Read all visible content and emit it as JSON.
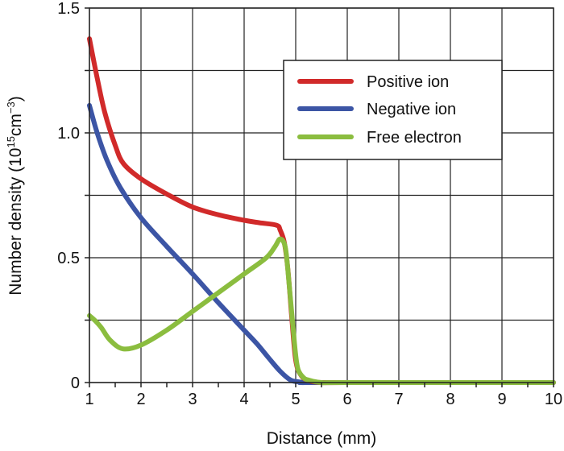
{
  "chart_data": {
    "type": "line",
    "title": "",
    "xlabel": "Distance (mm)",
    "ylabel": {
      "main": "Number density (10",
      "exp1": "15",
      "mid": "cm",
      "exp2": "−3",
      "end": ")"
    },
    "xlim": [
      1,
      10
    ],
    "ylim": [
      0,
      1.5
    ],
    "xticks": [
      1,
      2,
      3,
      4,
      5,
      6,
      7,
      8,
      9,
      10
    ],
    "xtick_labels": [
      "1",
      "2",
      "3",
      "4",
      "5",
      "6",
      "7",
      "8",
      "9",
      "10"
    ],
    "yticks": [
      0,
      0.5,
      1.0,
      1.5
    ],
    "ytick_labels": [
      "0",
      "0.5",
      "1.0",
      "1.5"
    ],
    "grid": true,
    "legend_position": "top-right",
    "series": [
      {
        "name": "Positive ion",
        "color": "#d12a2a",
        "x": [
          1,
          1.15,
          1.3,
          1.5,
          1.66,
          2,
          2.5,
          3,
          3.5,
          4,
          4.3,
          4.63,
          4.7,
          4.78,
          4.85,
          4.92,
          5.0,
          5.1,
          5.25,
          5.5,
          6,
          10
        ],
        "y": [
          1.377,
          1.22,
          1.08,
          0.95,
          0.877,
          0.816,
          0.755,
          0.703,
          0.672,
          0.65,
          0.64,
          0.63,
          0.61,
          0.56,
          0.45,
          0.27,
          0.09,
          0.03,
          0.008,
          0,
          0,
          0
        ]
      },
      {
        "name": "Negative ion",
        "color": "#3c55a5",
        "x": [
          1,
          1.15,
          1.34,
          1.6,
          2,
          2.5,
          3,
          3.5,
          4,
          4.25,
          4.47,
          4.7,
          4.9,
          5.05,
          5.2,
          5.5,
          10
        ],
        "y": [
          1.11,
          1.0,
          0.89,
          0.78,
          0.66,
          0.545,
          0.435,
          0.32,
          0.21,
          0.155,
          0.1,
          0.045,
          0.01,
          0.003,
          0,
          0,
          0
        ]
      },
      {
        "name": "Free electron",
        "color": "#8bbd3f",
        "x": [
          1,
          1.1,
          1.23,
          1.4,
          1.65,
          2,
          2.5,
          3,
          3.5,
          4,
          4.43,
          4.6,
          4.7,
          4.8,
          4.87,
          4.94,
          5.0,
          5.05,
          5.15,
          5.25,
          5.5,
          6,
          10
        ],
        "y": [
          0.268,
          0.25,
          0.22,
          0.17,
          0.135,
          0.15,
          0.21,
          0.285,
          0.36,
          0.435,
          0.5,
          0.545,
          0.575,
          0.54,
          0.4,
          0.24,
          0.11,
          0.05,
          0.02,
          0.01,
          0,
          0,
          0
        ]
      }
    ]
  }
}
